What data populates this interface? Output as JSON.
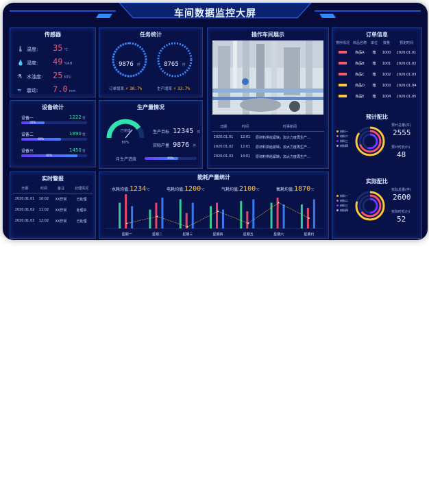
{
  "title": "车间数据监控大屏",
  "sensor": {
    "title": "传感器",
    "items": [
      {
        "label": "温度:",
        "value": "35",
        "unit": "℃",
        "icon": "thermometer-icon"
      },
      {
        "label": "湿度:",
        "value": "49",
        "unit": "%RH",
        "icon": "droplet-icon"
      },
      {
        "label": "水浊度:",
        "value": "25",
        "unit": "NTU",
        "icon": "water-icon"
      },
      {
        "label": "震动:",
        "value": "7.0",
        "unit": "mm",
        "icon": "wave-icon"
      }
    ]
  },
  "task": {
    "title": "任务统计",
    "ring1": {
      "value": "9876",
      "unit": "件",
      "label": "订单增率",
      "pct": "30.7%"
    },
    "ring2": {
      "value": "8765",
      "unit": "件",
      "label": "生产增率",
      "pct": "33.7%"
    }
  },
  "workshop": {
    "title": "操作车间展示",
    "table": {
      "headers": [
        "日期",
        "时间",
        "时事新闻"
      ],
      "rows": [
        [
          "2020.01.01",
          "12:01",
          "原材料供给紧缺，加大力度再生产..."
        ],
        [
          "2020.01.02",
          "12:01",
          "原材料供给紧缺，加大力度再生产..."
        ],
        [
          "2020.01.03",
          "14:01",
          "原材料供给紧缺，加大力度再生产..."
        ]
      ]
    }
  },
  "orders": {
    "title": "订单信息",
    "headers": [
      "排序情况",
      "商品名称",
      "单位",
      "数量",
      "预定时间"
    ],
    "rows": [
      {
        "name": "商品A",
        "unit": "箱",
        "qty": "1000",
        "date": "2020.01.01",
        "color": "#ff5a6a"
      },
      {
        "name": "商品B",
        "unit": "箱",
        "qty": "1001",
        "date": "2020.01.02",
        "color": "#ff5a6a"
      },
      {
        "name": "商品C",
        "unit": "箱",
        "qty": "1002",
        "date": "2020.01.03",
        "color": "#ff5a6a"
      },
      {
        "name": "商品D",
        "unit": "箱",
        "qty": "1003",
        "date": "2020.01.04",
        "color": "#ffc83a"
      },
      {
        "name": "商品E",
        "unit": "箱",
        "qty": "1004",
        "date": "2020.01.05",
        "color": "#ffc83a"
      }
    ]
  },
  "plan": {
    "title": "预计配比",
    "legend": [
      "材料一",
      "材料二",
      "材料三",
      "材料四"
    ],
    "k1": "预计总量(件)",
    "v1": "2555",
    "k2": "预计时长(h)",
    "v2": "48",
    "ring_fractions": [
      0.85,
      0.7,
      0.55
    ]
  },
  "actual": {
    "title": "实际配比",
    "legend": [
      "材料一",
      "材料二",
      "材料三",
      "材料四"
    ],
    "k1": "实际总量(件)",
    "v1": "2600",
    "k2": "实际时长(h)",
    "v2": "52",
    "ring_fractions": [
      0.8,
      0.65,
      0.5
    ]
  },
  "equip": {
    "title": "设备统计",
    "items": [
      {
        "label": "设备一",
        "value": "1222",
        "unit": "台",
        "pct": "35%",
        "fraction": 0.35
      },
      {
        "label": "设备二",
        "value": "1890",
        "unit": "台",
        "pct": "60%",
        "fraction": 0.6
      },
      {
        "label": "设备三",
        "value": "1450",
        "unit": "台",
        "pct": "85%",
        "fraction": 0.85
      }
    ]
  },
  "production": {
    "title": "生产量情况",
    "gauge_label": "已完成",
    "gauge_pct": "80%",
    "gauge_fraction": 0.8,
    "target_label": "生产目标",
    "target_value": "12345",
    "target_unit": "件",
    "actual_label": "实际产量",
    "actual_value": "9876",
    "actual_unit": "件",
    "progress_label": "月生产进度",
    "progress_pct": "65%",
    "progress_fraction": 0.65
  },
  "alarm": {
    "title": "实时警报",
    "headers": [
      "日期",
      "时间",
      "备注",
      "处理情况"
    ],
    "rows": [
      [
        "2020.01.01",
        "10:02",
        "XX异常",
        "已处理"
      ],
      [
        "2020.01.02",
        "11:02",
        "XX异常",
        "处理中"
      ],
      [
        "2020.01.03",
        "12:02",
        "XX异常",
        "已处理"
      ]
    ]
  },
  "energy": {
    "title": "能耗产量统计",
    "kpis": [
      {
        "label": "水耗均值:",
        "value": "1234",
        "unit": "℃"
      },
      {
        "label": "电耗均值:",
        "value": "1200",
        "unit": "℃"
      },
      {
        "label": "气耗均值:",
        "value": "2100",
        "unit": "℃"
      },
      {
        "label": "氧耗均值:",
        "value": "1870",
        "unit": "℃"
      }
    ]
  },
  "chart_data": {
    "type": "bar",
    "categories": [
      "星期一",
      "星期二",
      "星期三",
      "星期四",
      "星期五",
      "星期六",
      "星期日"
    ],
    "series": [
      {
        "values": [
          30,
          22,
          34,
          26,
          32,
          30,
          28
        ],
        "color": "#3de0a0"
      },
      {
        "values": [
          40,
          30,
          18,
          30,
          20,
          36,
          24
        ],
        "color": "#ff4f6a"
      },
      {
        "values": [
          26,
          36,
          30,
          22,
          34,
          28,
          34
        ],
        "color": "#3c86ff"
      }
    ],
    "line": [
      6,
      14,
      2,
      20,
      6,
      30,
      12
    ],
    "ylim": [
      0,
      40
    ]
  }
}
